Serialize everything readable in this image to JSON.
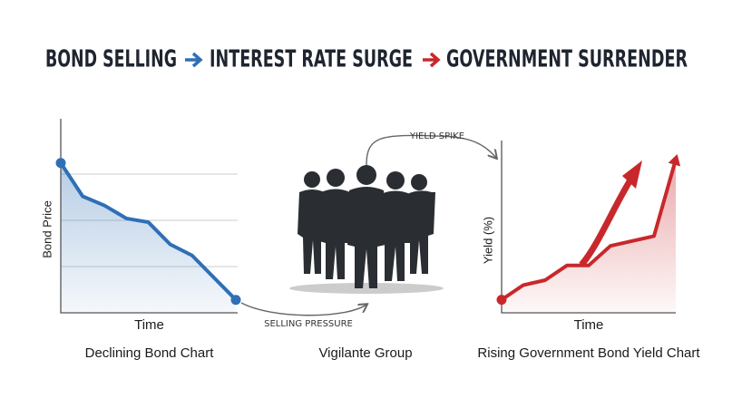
{
  "title": {
    "part1": "BOND SELLING",
    "part2": "INTEREST RATE SURGE",
    "part3": "GOVERNMENT SURRENDER"
  },
  "chart_data": [
    {
      "type": "line",
      "y_label": "Bond Price",
      "x_label": "Time",
      "caption": "Declining Bond Chart",
      "color": "#2f6fb5",
      "categories": [
        null,
        null,
        null,
        null,
        null,
        null,
        null,
        null,
        null
      ],
      "values": [
        81,
        63,
        58,
        51,
        49,
        37,
        31,
        19,
        7
      ],
      "ylim": [
        0,
        100
      ],
      "yticks": [
        25,
        50,
        75
      ],
      "grid": true,
      "area": true
    },
    {
      "type": "line",
      "y_label": "Yield (%)",
      "x_label": "Time",
      "caption": "Rising Government Bond Yield Chart",
      "color": "#c8282c",
      "categories": [
        null,
        null,
        null,
        null,
        null,
        null,
        null,
        null,
        null
      ],
      "values": [
        8,
        17,
        20,
        29,
        29,
        41,
        44,
        47,
        94
      ],
      "ylim": [
        0,
        100
      ],
      "grid": false,
      "area": true
    }
  ],
  "connectors": {
    "selling": "SELLING PRESSURE",
    "yield": "YIELD SPIKE"
  },
  "group_label": "Vigilante Group"
}
